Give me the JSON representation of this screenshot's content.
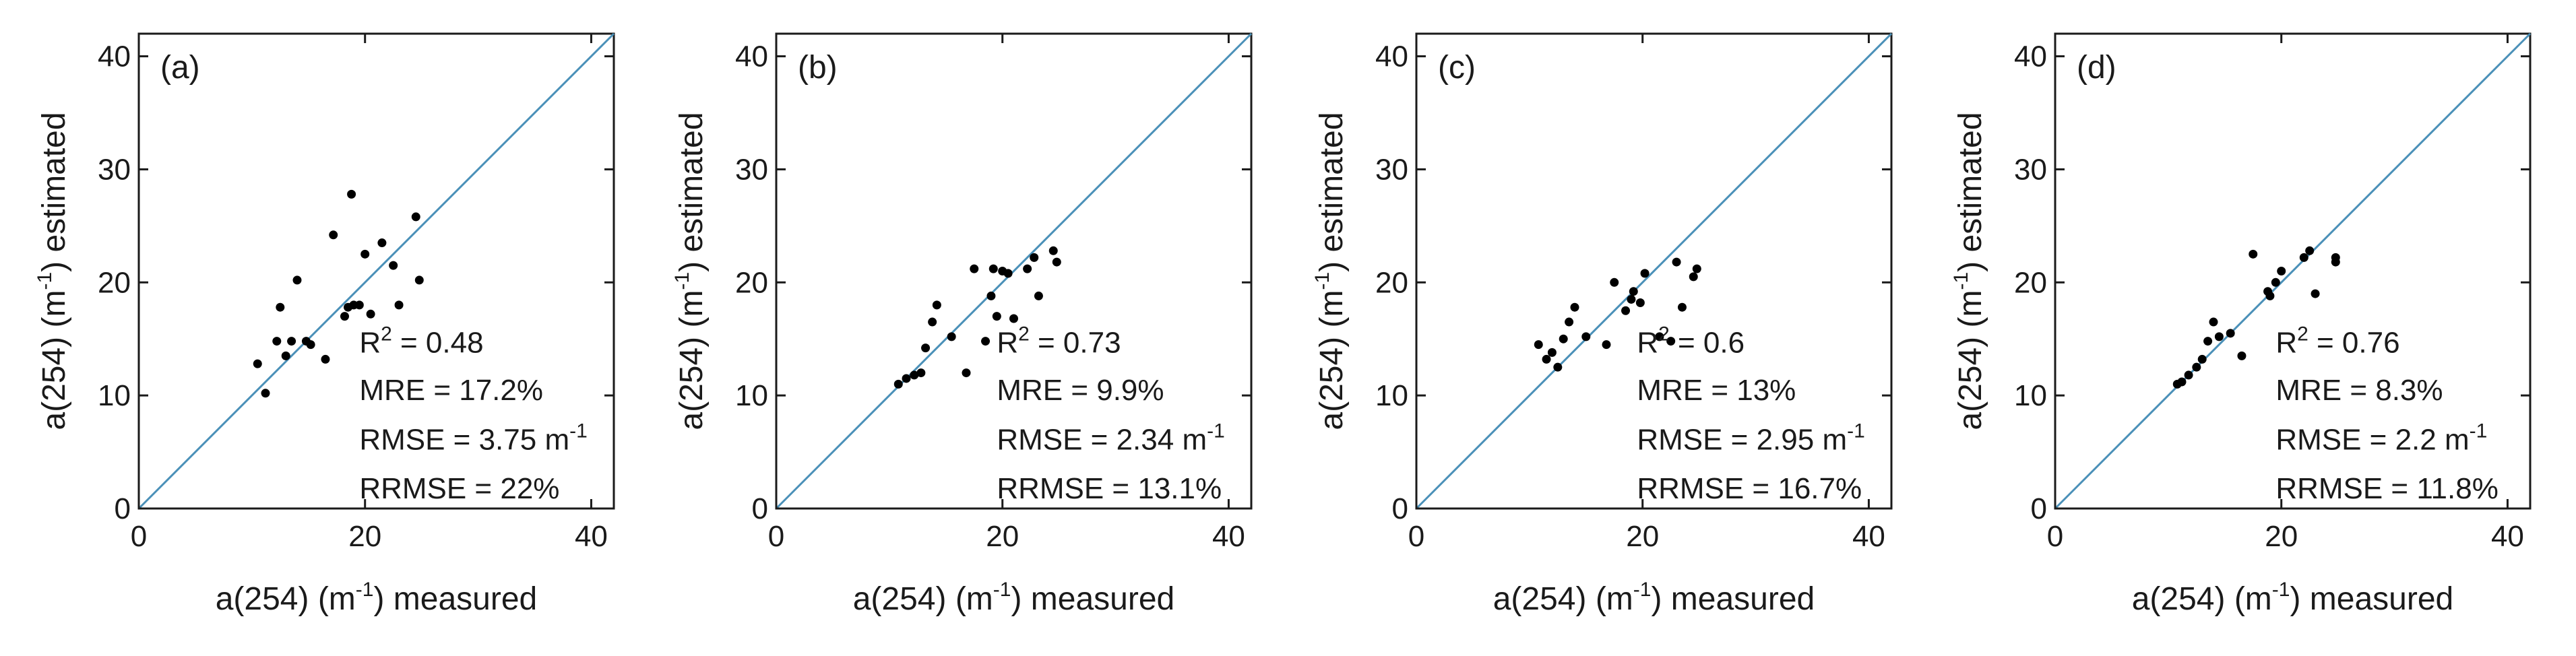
{
  "chart_data": [
    {
      "type": "scatter",
      "panel": "(a)",
      "xlabel": {
        "base": "a(254) (m",
        "exp": "-1",
        "tail": ")  measured"
      },
      "ylabel": {
        "base": "a(254) (m",
        "exp": "-1",
        "tail": ")  estimated"
      },
      "xlim": [
        0,
        42
      ],
      "ylim": [
        0,
        42
      ],
      "xticks": [
        "0",
        "20",
        "40"
      ],
      "yticks": [
        "0",
        "10",
        "20",
        "30",
        "40"
      ],
      "one_to_one_line": true,
      "line_color": "#4a90b8",
      "point_color": "#000000",
      "stats": {
        "r2": {
          "base": "R",
          "exp": "2",
          "tail": " = 0.48"
        },
        "mre": "MRE = 17.2%",
        "rmse": {
          "base": "RMSE = 3.75 m",
          "exp": "-1"
        },
        "rrmse": "RRMSE = 22%"
      },
      "points": [
        [
          10.5,
          12.8
        ],
        [
          11.2,
          10.2
        ],
        [
          12.2,
          14.8
        ],
        [
          12.5,
          17.8
        ],
        [
          13.0,
          13.5
        ],
        [
          13.5,
          14.8
        ],
        [
          14.0,
          20.2
        ],
        [
          14.8,
          14.8
        ],
        [
          15.2,
          14.5
        ],
        [
          16.5,
          13.2
        ],
        [
          17.2,
          24.2
        ],
        [
          18.2,
          17.0
        ],
        [
          18.5,
          17.8
        ],
        [
          18.8,
          27.8
        ],
        [
          19.0,
          18.0
        ],
        [
          19.5,
          18.0
        ],
        [
          20.0,
          22.5
        ],
        [
          20.5,
          17.2
        ],
        [
          21.5,
          23.5
        ],
        [
          22.5,
          21.5
        ],
        [
          23.0,
          18.0
        ],
        [
          24.5,
          25.8
        ],
        [
          24.8,
          20.2
        ]
      ]
    },
    {
      "type": "scatter",
      "panel": "(b)",
      "xlabel": {
        "base": "a(254) (m",
        "exp": "-1",
        "tail": ")  measured"
      },
      "ylabel": {
        "base": "a(254) (m",
        "exp": "-1",
        "tail": ")  estimated"
      },
      "xlim": [
        0,
        42
      ],
      "ylim": [
        0,
        42
      ],
      "xticks": [
        "0",
        "20",
        "40"
      ],
      "yticks": [
        "0",
        "10",
        "20",
        "30",
        "40"
      ],
      "one_to_one_line": true,
      "line_color": "#4a90b8",
      "point_color": "#000000",
      "stats": {
        "r2": {
          "base": "R",
          "exp": "2",
          "tail": " = 0.73"
        },
        "mre": "MRE = 9.9%",
        "rmse": {
          "base": "RMSE = 2.34 m",
          "exp": "-1"
        },
        "rrmse": "RRMSE = 13.1%"
      },
      "points": [
        [
          10.8,
          11.0
        ],
        [
          11.5,
          11.5
        ],
        [
          12.2,
          11.8
        ],
        [
          12.8,
          12.0
        ],
        [
          13.2,
          14.2
        ],
        [
          13.8,
          16.5
        ],
        [
          14.2,
          18.0
        ],
        [
          15.5,
          15.2
        ],
        [
          16.8,
          12.0
        ],
        [
          17.5,
          21.2
        ],
        [
          18.5,
          14.8
        ],
        [
          19.0,
          18.8
        ],
        [
          19.2,
          21.2
        ],
        [
          19.5,
          17.0
        ],
        [
          20.0,
          21.0
        ],
        [
          20.5,
          20.8
        ],
        [
          21.0,
          16.8
        ],
        [
          22.2,
          21.2
        ],
        [
          22.8,
          22.2
        ],
        [
          23.2,
          18.8
        ],
        [
          24.5,
          22.8
        ],
        [
          24.8,
          21.8
        ]
      ]
    },
    {
      "type": "scatter",
      "panel": "(c)",
      "xlabel": {
        "base": "a(254) (m",
        "exp": "-1",
        "tail": ")  measured"
      },
      "ylabel": {
        "base": "a(254) (m",
        "exp": "-1",
        "tail": ")  estimated"
      },
      "xlim": [
        0,
        42
      ],
      "ylim": [
        0,
        42
      ],
      "xticks": [
        "0",
        "20",
        "40"
      ],
      "yticks": [
        "0",
        "10",
        "20",
        "30",
        "40"
      ],
      "one_to_one_line": true,
      "line_color": "#4a90b8",
      "point_color": "#000000",
      "stats": {
        "r2": {
          "base": "R",
          "exp": "2",
          "tail": " = 0.6"
        },
        "mre": "MRE = 13%",
        "rmse": {
          "base": "RMSE = 2.95 m",
          "exp": "-1"
        },
        "rrmse": "RRMSE = 16.7%"
      },
      "points": [
        [
          10.8,
          14.5
        ],
        [
          11.5,
          13.2
        ],
        [
          12.0,
          13.8
        ],
        [
          12.5,
          12.5
        ],
        [
          13.0,
          15.0
        ],
        [
          13.5,
          16.5
        ],
        [
          14.0,
          17.8
        ],
        [
          15.0,
          15.2
        ],
        [
          16.8,
          14.5
        ],
        [
          17.5,
          20.0
        ],
        [
          18.5,
          17.5
        ],
        [
          19.0,
          18.5
        ],
        [
          19.2,
          19.2
        ],
        [
          19.8,
          18.2
        ],
        [
          20.2,
          20.8
        ],
        [
          21.5,
          15.2
        ],
        [
          22.5,
          14.8
        ],
        [
          23.0,
          21.8
        ],
        [
          23.5,
          17.8
        ],
        [
          24.5,
          20.5
        ],
        [
          24.8,
          21.2
        ]
      ]
    },
    {
      "type": "scatter",
      "panel": "(d)",
      "xlabel": {
        "base": "a(254) (m",
        "exp": "-1",
        "tail": ")  measured"
      },
      "ylabel": {
        "base": "a(254) (m",
        "exp": "-1",
        "tail": ")  estimated"
      },
      "xlim": [
        0,
        42
      ],
      "ylim": [
        0,
        42
      ],
      "xticks": [
        "0",
        "20",
        "40"
      ],
      "yticks": [
        "0",
        "10",
        "20",
        "30",
        "40"
      ],
      "one_to_one_line": true,
      "line_color": "#4a90b8",
      "point_color": "#000000",
      "stats": {
        "r2": {
          "base": "R",
          "exp": "2",
          "tail": " = 0.76"
        },
        "mre": "MRE = 8.3%",
        "rmse": {
          "base": "RMSE = 2.2 m",
          "exp": "-1"
        },
        "rrmse": "RRMSE = 11.8%"
      },
      "points": [
        [
          10.8,
          11.0
        ],
        [
          11.2,
          11.2
        ],
        [
          11.8,
          11.8
        ],
        [
          12.5,
          12.5
        ],
        [
          13.0,
          13.2
        ],
        [
          13.5,
          14.8
        ],
        [
          14.0,
          16.5
        ],
        [
          14.5,
          15.2
        ],
        [
          15.5,
          15.5
        ],
        [
          16.5,
          13.5
        ],
        [
          17.5,
          22.5
        ],
        [
          18.8,
          19.2
        ],
        [
          19.0,
          18.8
        ],
        [
          19.5,
          20.0
        ],
        [
          20.0,
          21.0
        ],
        [
          22.0,
          22.2
        ],
        [
          22.5,
          22.8
        ],
        [
          23.0,
          19.0
        ],
        [
          24.8,
          21.8
        ],
        [
          24.8,
          22.2
        ]
      ]
    }
  ]
}
